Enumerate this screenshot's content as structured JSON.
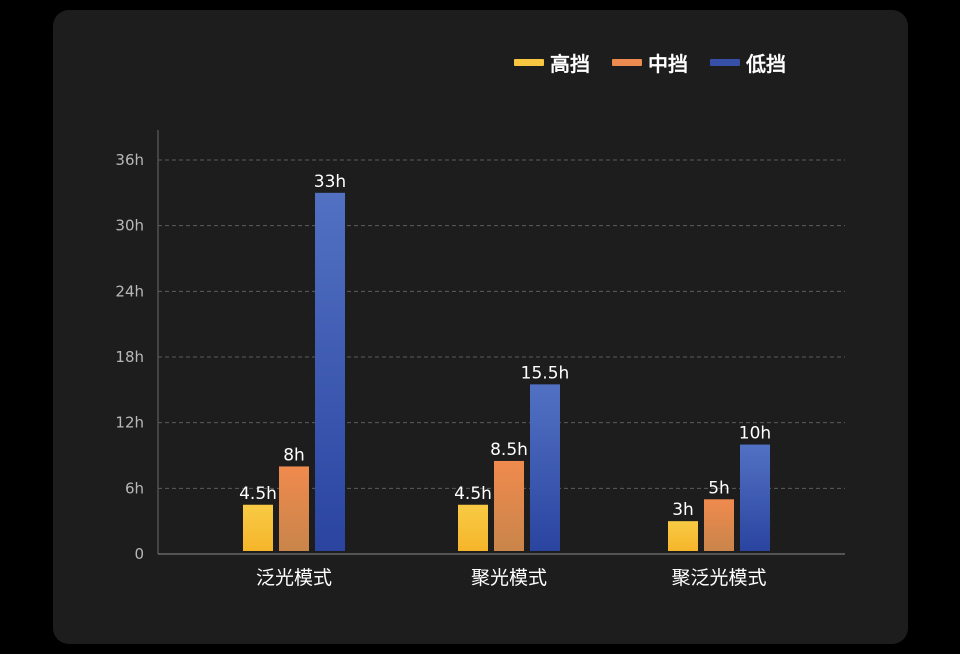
{
  "chart_data": {
    "type": "bar",
    "categories": [
      "泛光模式",
      "聚光模式",
      "聚泛光模式"
    ],
    "series": [
      {
        "name": "高挡",
        "values": [
          4.5,
          4.5,
          3
        ],
        "labels": [
          "4.5h",
          "4.5h",
          "3h"
        ]
      },
      {
        "name": "中挡",
        "values": [
          8,
          8.5,
          5
        ],
        "labels": [
          "8h",
          "8.5h",
          "5h"
        ]
      },
      {
        "name": "低挡",
        "values": [
          33,
          15.5,
          10
        ],
        "labels": [
          "33h",
          "15.5h",
          "10h"
        ]
      }
    ],
    "ylim": [
      0,
      36
    ],
    "yticks": [
      0,
      6,
      12,
      18,
      24,
      30,
      36
    ],
    "ytick_labels": [
      "0",
      "6h",
      "12h",
      "18h",
      "24h",
      "30h",
      "36h"
    ],
    "grid": true,
    "legend_position": "top-right",
    "colors": {
      "high_top": "#f8cb45",
      "high_bottom": "#f5b52a",
      "mid_top": "#f08a4e",
      "mid_bottom": "#c9854a",
      "low_top": "#5271c3",
      "low_bottom": "#2a44a0",
      "background": "#1e1d1e"
    }
  }
}
